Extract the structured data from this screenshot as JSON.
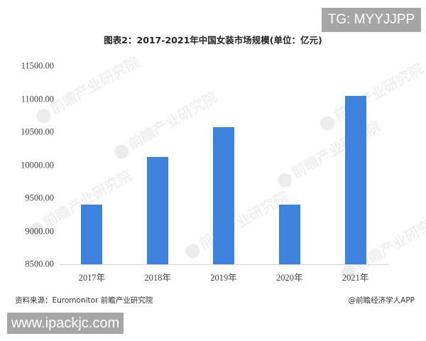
{
  "badges": {
    "top_right": "TG: MYYJJPP",
    "bottom_left": "www.ipackjc.com"
  },
  "watermark": "前瞻产业研究院",
  "footer": {
    "source": "资料来源：Euromonitor 前瞻产业研究院",
    "credit": "@前瞻经济学人APP"
  },
  "colors": {
    "bar": "#3d82dc",
    "badge_bg": "#a6a6a6"
  },
  "chart_data": {
    "type": "bar",
    "title": "图表2：2017-2021年中国女装市场规模(单位：亿元)",
    "xlabel": "",
    "ylabel": "",
    "categories": [
      "2017年",
      "2018年",
      "2019年",
      "2020年",
      "2021年"
    ],
    "values": [
      9400,
      10120,
      10580,
      9400,
      11050
    ],
    "ylim": [
      8500,
      11500
    ],
    "yticks": [
      "11500.00",
      "11000.00",
      "10500.00",
      "10000.00",
      "9500.00",
      "9000.00",
      "8500.00"
    ],
    "grid": false,
    "legend": "none"
  }
}
